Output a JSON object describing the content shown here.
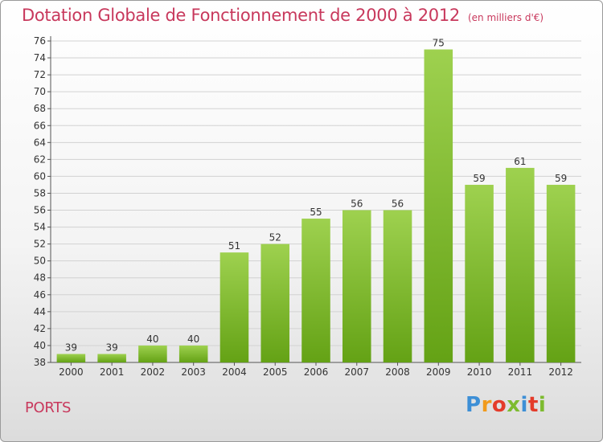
{
  "chart_data": {
    "type": "bar",
    "title": "Dotation Globale de Fonctionnement de 2000 à 2012",
    "unit": "(en milliers d'€)",
    "categories": [
      "2000",
      "2001",
      "2002",
      "2003",
      "2004",
      "2005",
      "2006",
      "2007",
      "2008",
      "2009",
      "2010",
      "2011",
      "2012"
    ],
    "values": [
      39,
      39,
      40,
      40,
      51,
      52,
      55,
      56,
      56,
      75,
      59,
      61,
      59
    ],
    "ylim": [
      38,
      76
    ],
    "ytick_step": 2,
    "xlabel": "",
    "ylabel": "",
    "grid": true,
    "bar_color_top": "#9ed14f",
    "bar_color_bottom": "#64a215"
  },
  "footer": {
    "place": "PORTS",
    "logo": "Proxiti",
    "logo_colors": [
      "#3d8fd6",
      "#f19a1c",
      "#e43b2a",
      "#7dbb2f",
      "#3d8fd6",
      "#e43b2a",
      "#7dbb2f"
    ]
  }
}
